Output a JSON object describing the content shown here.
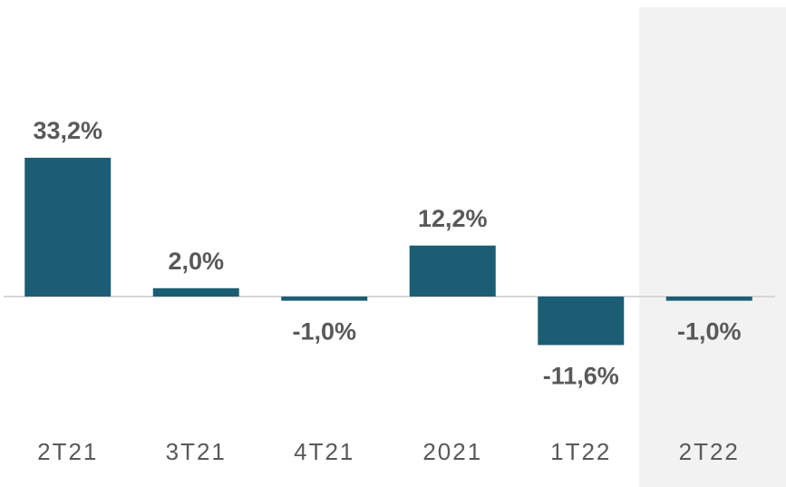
{
  "chart_data": {
    "type": "bar",
    "categories": [
      "2T21",
      "3T21",
      "4T21",
      "2021",
      "1T22",
      "2T22"
    ],
    "values": [
      33.2,
      2.0,
      -1.0,
      12.2,
      -11.6,
      -1.0
    ],
    "value_labels": [
      "33,2%",
      "2,0%",
      "-1,0%",
      "12,2%",
      "-11,6%",
      "-1,0%"
    ],
    "color": "#1b5e74",
    "highlight_index": 5,
    "highlight_color": "#f2f2f2"
  }
}
